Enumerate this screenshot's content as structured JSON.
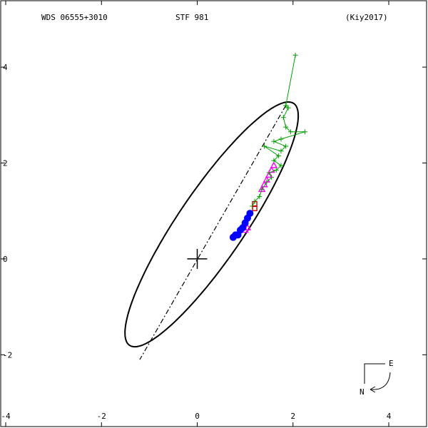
{
  "header": {
    "left": "WDS 06555+3010",
    "center": "STF 981",
    "right": "(Kiy2017)"
  },
  "compass": {
    "east_label": "E",
    "north_label": "N"
  },
  "colors": {
    "orbit": "#000000",
    "green_obs": "#00a000",
    "magenta_obs": "#ff00ff",
    "blue_obs": "#0000ff",
    "red_obs": "#cc0000",
    "frame": "#000000"
  },
  "chart_data": {
    "type": "scatter",
    "title": "",
    "xlabel": "",
    "ylabel": "",
    "xlim": [
      -4,
      4.7
    ],
    "ylim": [
      -3.2,
      5.4
    ],
    "x_ticks": [
      -4,
      -2,
      0,
      2,
      4
    ],
    "y_ticks": [
      -2,
      0,
      2,
      4
    ],
    "x_tick_labels": [
      "-4",
      "-2",
      "0",
      "2",
      "4"
    ],
    "y_tick_labels": [
      "-2",
      "0",
      "2",
      "4"
    ],
    "primary": [
      0,
      0
    ],
    "orbit": {
      "center": [
        0.3,
        0.72
      ],
      "semi_major": 3.05,
      "semi_minor": 0.7,
      "angle_deg": 55.8
    },
    "line_of_nodes": [
      [
        1.85,
        3.2
      ],
      [
        -1.2,
        -2.1
      ]
    ],
    "series": [
      {
        "marker": "plus",
        "color_key": "green_obs",
        "points": [
          [
            2.05,
            4.25
          ],
          [
            1.85,
            3.2
          ],
          [
            1.9,
            3.15
          ],
          [
            1.8,
            2.95
          ],
          [
            1.85,
            2.75
          ],
          [
            1.95,
            2.65
          ],
          [
            2.25,
            2.65
          ],
          [
            1.75,
            2.5
          ],
          [
            1.6,
            2.45
          ],
          [
            1.85,
            2.35
          ],
          [
            1.75,
            2.25
          ],
          [
            1.4,
            2.35
          ],
          [
            1.7,
            2.15
          ],
          [
            1.6,
            2.05
          ],
          [
            1.75,
            1.95
          ],
          [
            1.65,
            1.85
          ],
          [
            1.5,
            1.8
          ],
          [
            1.55,
            1.7
          ],
          [
            1.45,
            1.6
          ],
          [
            1.35,
            1.45
          ],
          [
            1.3,
            1.3
          ],
          [
            1.2,
            1.2
          ],
          [
            1.15,
            1.1
          ]
        ]
      },
      {
        "marker": "triangle",
        "color_key": "magenta_obs",
        "points": [
          [
            1.6,
            1.95
          ],
          [
            1.55,
            1.85
          ],
          [
            1.5,
            1.75
          ],
          [
            1.45,
            1.65
          ],
          [
            1.4,
            1.55
          ],
          [
            1.35,
            1.45
          ],
          [
            1.05,
            0.65
          ],
          [
            1.0,
            0.6
          ]
        ]
      },
      {
        "marker": "square",
        "color_key": "red_obs",
        "points": [
          [
            1.2,
            1.05
          ],
          [
            1.2,
            1.15
          ]
        ]
      },
      {
        "marker": "circle",
        "color_key": "blue_obs",
        "points": [
          [
            1.1,
            0.95
          ],
          [
            1.05,
            0.85
          ],
          [
            1.0,
            0.75
          ],
          [
            0.95,
            0.65
          ],
          [
            0.9,
            0.6
          ],
          [
            0.85,
            0.5
          ],
          [
            0.8,
            0.5
          ],
          [
            0.75,
            0.45
          ]
        ]
      }
    ]
  }
}
